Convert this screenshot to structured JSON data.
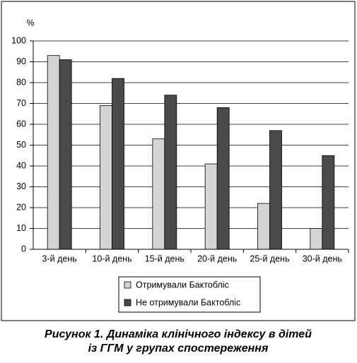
{
  "chart_data": {
    "type": "bar",
    "ylabel": "%",
    "categories": [
      "3-й день",
      "10-й день",
      "15-й день",
      "20-й день",
      "25-й день",
      "30-й день"
    ],
    "series": [
      {
        "name": "Отримували Бактобліс",
        "color": "#d4d4d4",
        "values": [
          93,
          69,
          53,
          41,
          22,
          10
        ]
      },
      {
        "name": "Не отримували Бактобліс",
        "color": "#4a4a4a",
        "values": [
          91,
          82,
          74,
          68,
          57,
          45
        ]
      }
    ],
    "ylim": [
      0,
      100
    ],
    "yticks": [
      0,
      10,
      20,
      30,
      40,
      50,
      60,
      70,
      80,
      90,
      100
    ],
    "grid": true,
    "legend": "bottom",
    "caption": [
      "Рисунок 1. Динаміка клінічного індексу в дітей",
      "із ГГМ у групах спостереження"
    ]
  }
}
